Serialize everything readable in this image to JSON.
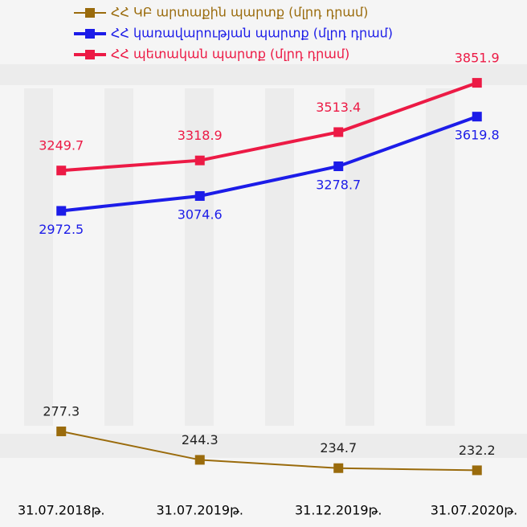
{
  "chart_data": {
    "type": "line",
    "categories": [
      "31.07.2018թ.",
      "31.07.2019թ.",
      "31.12.2019թ.",
      "31.07.2020թ."
    ],
    "series": [
      {
        "name": "ՀՀ ԿԲ արտաքին պարտք (մլրդ դրամ)",
        "color": "#9a6b0c",
        "axis": "y2",
        "values": [
          277.3,
          244.3,
          234.7,
          232.2
        ]
      },
      {
        "name": "ՀՀ կառավարության պարտք (մլրդ դրամ)",
        "color": "#1c1ce8",
        "values": [
          2972.5,
          3074.6,
          3278.7,
          3619.8
        ]
      },
      {
        "name": "ՀՀ պետական պարտք (մլրդ դրամ)",
        "color": "#ec1a45",
        "values": [
          3249.7,
          3318.9,
          3513.4,
          3851.9
        ]
      }
    ],
    "ylim": [
      1000,
      4200
    ],
    "y2lim": [
      200,
      740
    ],
    "legend": "top",
    "grid": false
  }
}
